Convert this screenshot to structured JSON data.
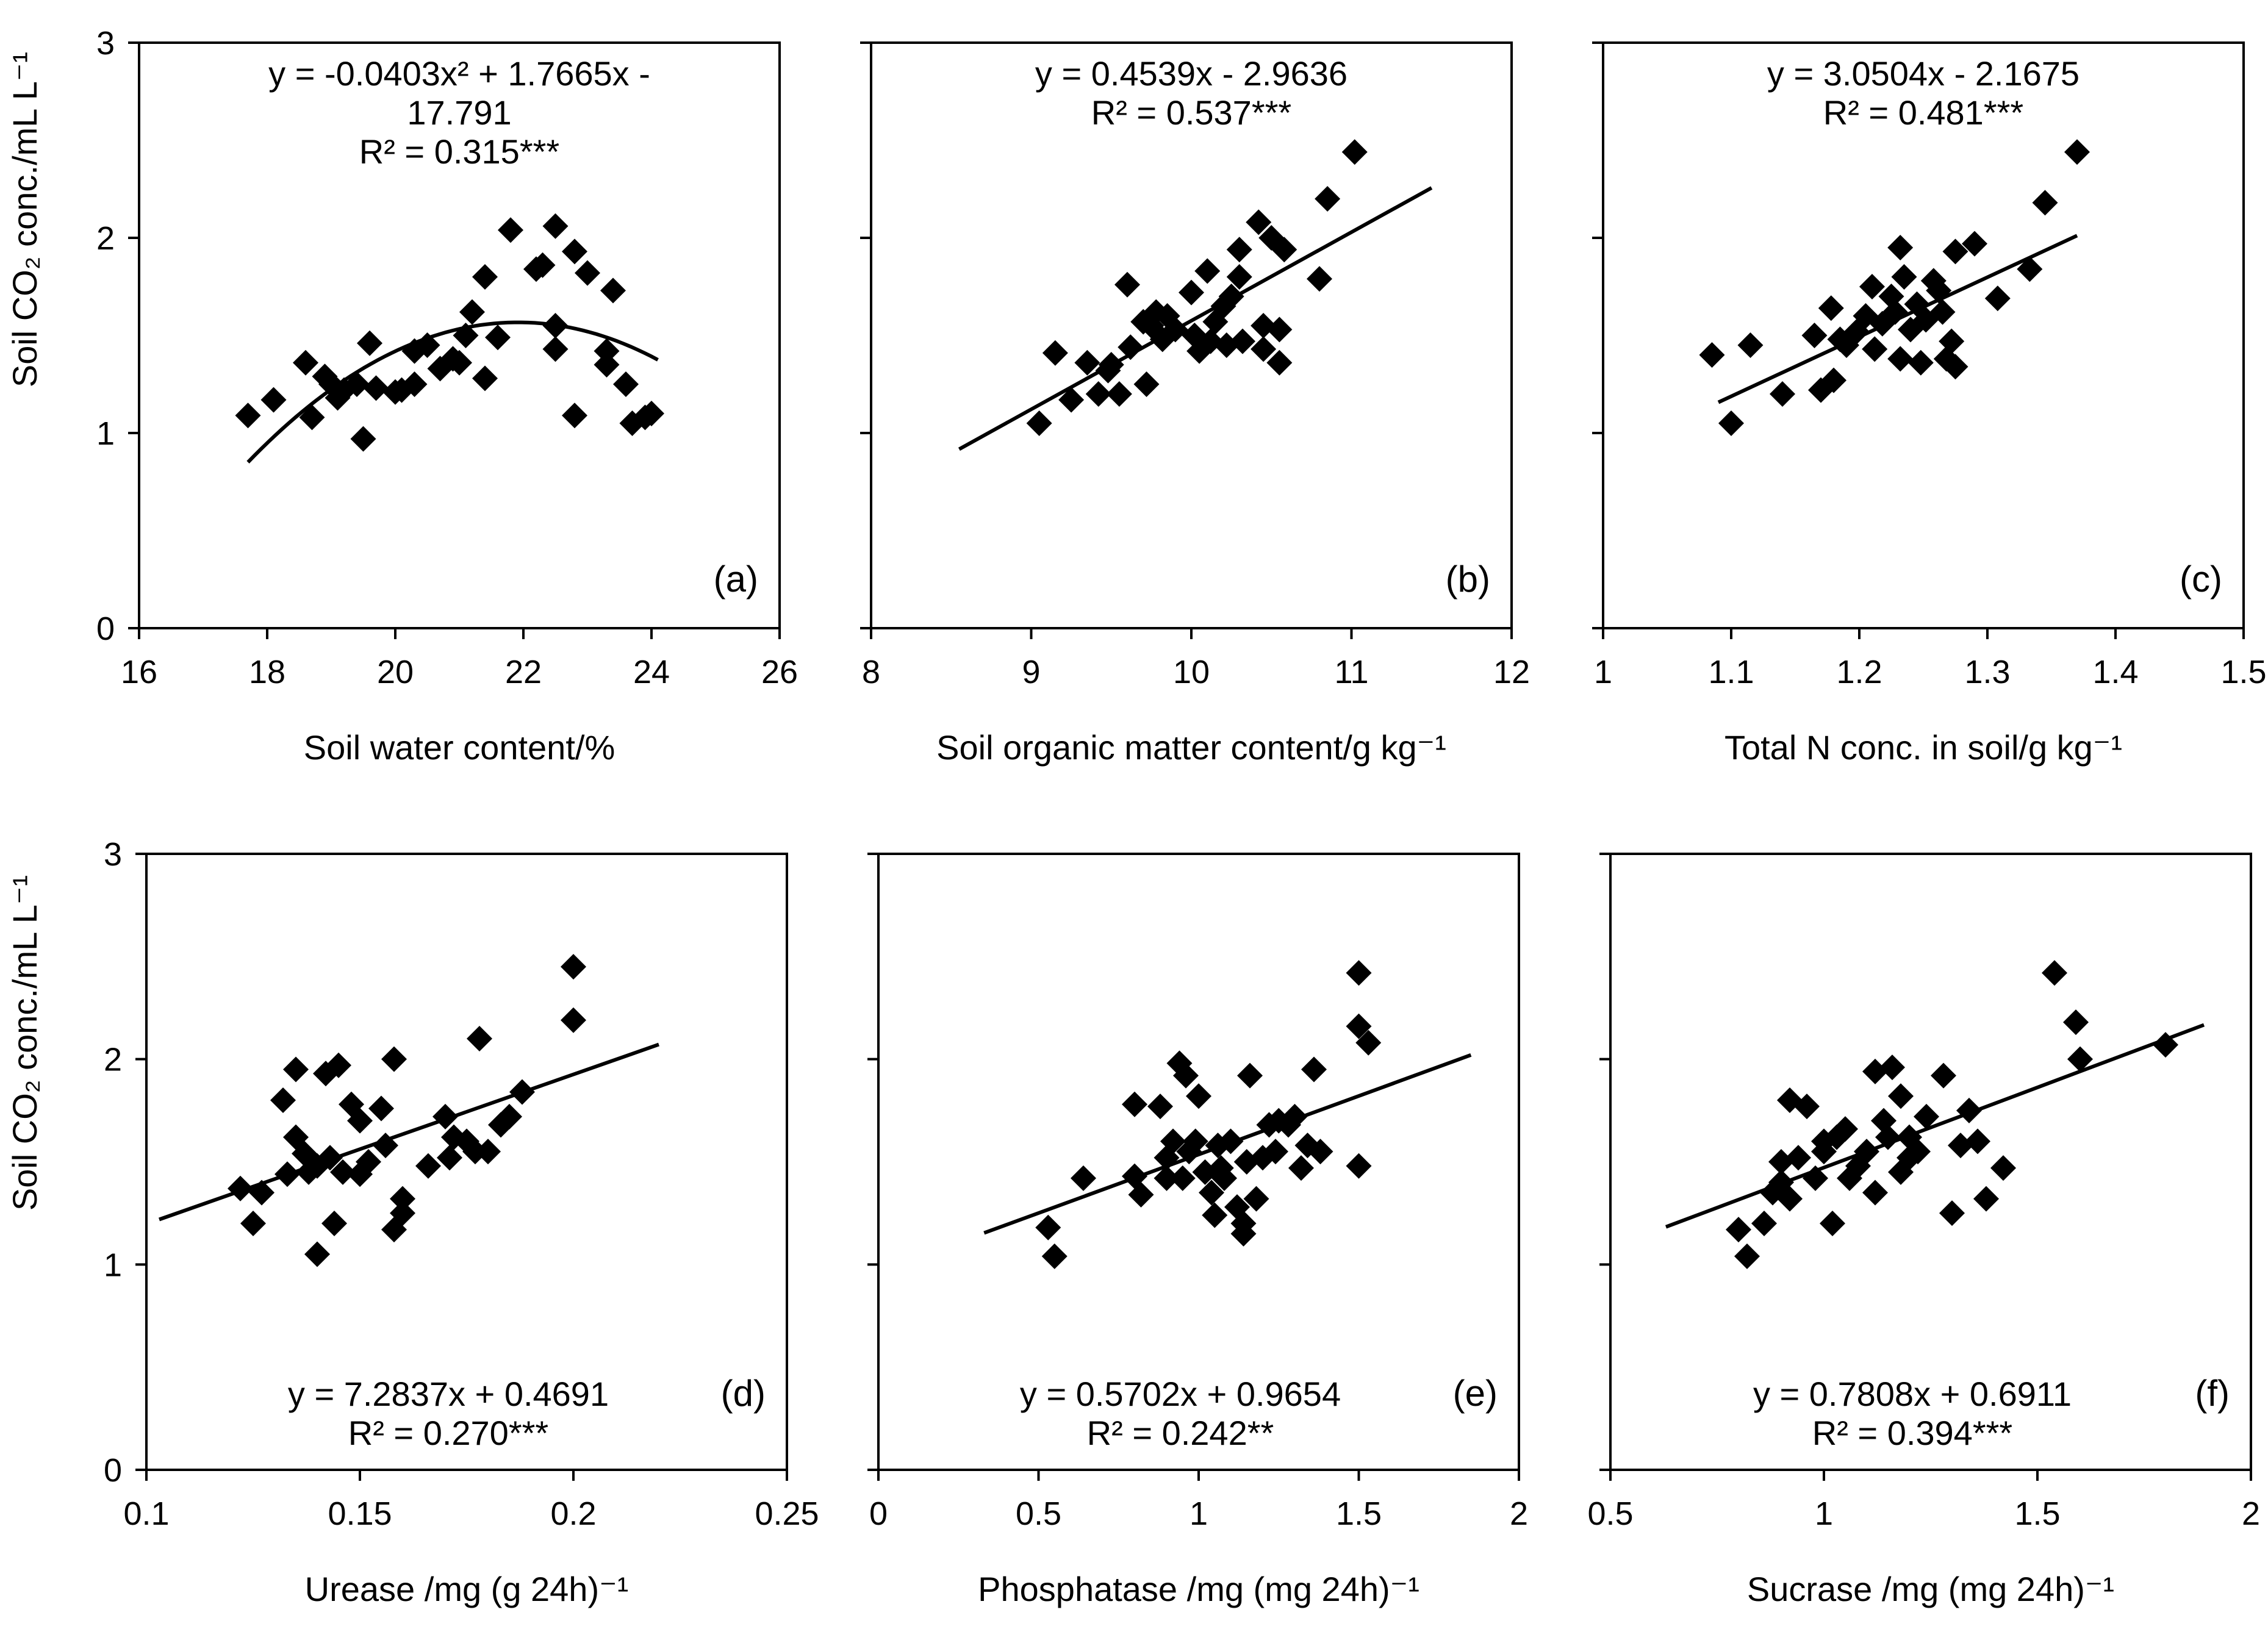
{
  "figure": {
    "y_axis_title": "Soil CO₂ conc./mL L⁻¹"
  },
  "chart_data": [
    {
      "type": "scatter",
      "panel_label": "(a)",
      "xlabel": "Soil water content/%",
      "ylabel": "Soil CO₂ conc./mL L⁻¹",
      "xlim": [
        16,
        26
      ],
      "ylim": [
        0,
        3
      ],
      "x_ticks": [
        16,
        18,
        20,
        22,
        24,
        26
      ],
      "y_ticks": [
        0,
        1,
        2,
        3
      ],
      "equation_lines": [
        "y = -0.0403x² + 1.7665x -",
        "17.791",
        "R² = 0.315***"
      ],
      "equation_position": "top-center",
      "fit": {
        "kind": "quadratic",
        "coefficients": [
          -0.0403,
          1.7665,
          -17.791
        ],
        "x_range": [
          17.7,
          24.1
        ]
      },
      "points": [
        [
          17.7,
          1.09
        ],
        [
          18.1,
          1.17
        ],
        [
          18.6,
          1.36
        ],
        [
          18.7,
          1.08
        ],
        [
          18.9,
          1.29
        ],
        [
          19.0,
          1.25
        ],
        [
          19.1,
          1.18
        ],
        [
          19.2,
          1.22
        ],
        [
          19.4,
          1.25
        ],
        [
          19.5,
          0.97
        ],
        [
          19.6,
          1.46
        ],
        [
          19.7,
          1.23
        ],
        [
          20.0,
          1.21
        ],
        [
          20.1,
          1.22
        ],
        [
          20.3,
          1.25
        ],
        [
          20.3,
          1.42
        ],
        [
          20.5,
          1.45
        ],
        [
          20.7,
          1.33
        ],
        [
          20.9,
          1.38
        ],
        [
          21.0,
          1.36
        ],
        [
          21.1,
          1.5
        ],
        [
          21.2,
          1.62
        ],
        [
          21.4,
          1.8
        ],
        [
          21.4,
          1.28
        ],
        [
          21.6,
          1.49
        ],
        [
          21.8,
          2.04
        ],
        [
          22.2,
          1.84
        ],
        [
          22.3,
          1.86
        ],
        [
          22.5,
          2.06
        ],
        [
          22.5,
          1.55
        ],
        [
          22.5,
          1.43
        ],
        [
          22.8,
          1.93
        ],
        [
          22.8,
          1.09
        ],
        [
          23.0,
          1.82
        ],
        [
          23.3,
          1.35
        ],
        [
          23.3,
          1.42
        ],
        [
          23.4,
          1.73
        ],
        [
          23.6,
          1.25
        ],
        [
          23.7,
          1.05
        ],
        [
          23.9,
          1.08
        ],
        [
          24.0,
          1.1
        ]
      ]
    },
    {
      "type": "scatter",
      "panel_label": "(b)",
      "xlabel": "Soil organic matter content/g kg⁻¹",
      "ylabel": "",
      "xlim": [
        8,
        12
      ],
      "ylim": [
        0,
        3
      ],
      "x_ticks": [
        8,
        9,
        10,
        11,
        12
      ],
      "y_ticks": [
        0,
        1,
        2,
        3
      ],
      "equation_lines": [
        "y = 0.4539x - 2.9636",
        "R² = 0.537***"
      ],
      "equation_position": "top-center",
      "fit": {
        "kind": "linear",
        "coefficients": [
          0.4539,
          -2.9636
        ],
        "x_range": [
          8.55,
          11.5
        ]
      },
      "points": [
        [
          9.05,
          1.05
        ],
        [
          9.15,
          1.41
        ],
        [
          9.25,
          1.17
        ],
        [
          9.35,
          1.36
        ],
        [
          9.42,
          1.2
        ],
        [
          9.48,
          1.32
        ],
        [
          9.5,
          1.35
        ],
        [
          9.55,
          1.2
        ],
        [
          9.6,
          1.76
        ],
        [
          9.62,
          1.44
        ],
        [
          9.7,
          1.57
        ],
        [
          9.72,
          1.25
        ],
        [
          9.75,
          1.55
        ],
        [
          9.78,
          1.62
        ],
        [
          9.82,
          1.48
        ],
        [
          9.85,
          1.6
        ],
        [
          9.9,
          1.53
        ],
        [
          10.0,
          1.72
        ],
        [
          10.02,
          1.5
        ],
        [
          10.05,
          1.42
        ],
        [
          10.1,
          1.83
        ],
        [
          10.12,
          1.47
        ],
        [
          10.15,
          1.57
        ],
        [
          10.2,
          1.65
        ],
        [
          10.22,
          1.45
        ],
        [
          10.25,
          1.7
        ],
        [
          10.3,
          1.94
        ],
        [
          10.3,
          1.8
        ],
        [
          10.32,
          1.47
        ],
        [
          10.42,
          2.08
        ],
        [
          10.45,
          1.55
        ],
        [
          10.45,
          1.43
        ],
        [
          10.5,
          2.0
        ],
        [
          10.55,
          1.36
        ],
        [
          10.55,
          1.53
        ],
        [
          10.58,
          1.94
        ],
        [
          10.8,
          1.79
        ],
        [
          10.85,
          2.2
        ],
        [
          11.02,
          2.44
        ]
      ]
    },
    {
      "type": "scatter",
      "panel_label": "(c)",
      "xlabel": "Total N conc. in soil/g kg⁻¹",
      "ylabel": "",
      "xlim": [
        1,
        1.5
      ],
      "ylim": [
        0,
        3
      ],
      "x_ticks": [
        1,
        1.1,
        1.2,
        1.3,
        1.4,
        1.5
      ],
      "y_ticks": [
        0,
        1,
        2,
        3
      ],
      "equation_lines": [
        "y = 3.0504x - 2.1675",
        "R² = 0.481***"
      ],
      "equation_position": "top-center",
      "fit": {
        "kind": "linear",
        "coefficients": [
          3.0504,
          -2.1675
        ],
        "x_range": [
          1.09,
          1.37
        ]
      },
      "points": [
        [
          1.085,
          1.4
        ],
        [
          1.1,
          1.05
        ],
        [
          1.115,
          1.45
        ],
        [
          1.14,
          1.2
        ],
        [
          1.165,
          1.5
        ],
        [
          1.17,
          1.22
        ],
        [
          1.178,
          1.64
        ],
        [
          1.18,
          1.27
        ],
        [
          1.185,
          1.48
        ],
        [
          1.19,
          1.45
        ],
        [
          1.198,
          1.52
        ],
        [
          1.205,
          1.6
        ],
        [
          1.21,
          1.75
        ],
        [
          1.212,
          1.43
        ],
        [
          1.218,
          1.56
        ],
        [
          1.225,
          1.7
        ],
        [
          1.228,
          1.62
        ],
        [
          1.232,
          1.95
        ],
        [
          1.232,
          1.38
        ],
        [
          1.235,
          1.8
        ],
        [
          1.24,
          1.53
        ],
        [
          1.245,
          1.66
        ],
        [
          1.248,
          1.36
        ],
        [
          1.252,
          1.58
        ],
        [
          1.258,
          1.78
        ],
        [
          1.262,
          1.73
        ],
        [
          1.265,
          1.62
        ],
        [
          1.268,
          1.38
        ],
        [
          1.272,
          1.47
        ],
        [
          1.275,
          1.34
        ],
        [
          1.275,
          1.93
        ],
        [
          1.29,
          1.97
        ],
        [
          1.308,
          1.69
        ],
        [
          1.333,
          1.84
        ],
        [
          1.345,
          2.18
        ],
        [
          1.37,
          2.44
        ]
      ]
    },
    {
      "type": "scatter",
      "panel_label": "(d)",
      "xlabel": "Urease /mg (g 24h)⁻¹",
      "ylabel": "Soil CO₂ conc./mL L⁻¹",
      "xlim": [
        0.1,
        0.25
      ],
      "ylim": [
        0,
        3
      ],
      "x_ticks": [
        0.1,
        0.15,
        0.2,
        0.25
      ],
      "y_ticks": [
        0,
        1,
        2,
        3
      ],
      "equation_lines": [
        "y = 7.2837x + 0.4691",
        "R² = 0.270***"
      ],
      "equation_position": "bottom-center",
      "fit": {
        "kind": "linear",
        "coefficients": [
          7.2837,
          0.4691
        ],
        "x_range": [
          0.103,
          0.22
        ]
      },
      "points": [
        [
          0.122,
          1.37
        ],
        [
          0.125,
          1.2
        ],
        [
          0.127,
          1.35
        ],
        [
          0.132,
          1.8
        ],
        [
          0.133,
          1.44
        ],
        [
          0.135,
          1.62
        ],
        [
          0.135,
          1.95
        ],
        [
          0.137,
          1.54
        ],
        [
          0.138,
          1.45
        ],
        [
          0.14,
          1.05
        ],
        [
          0.14,
          1.48
        ],
        [
          0.142,
          1.93
        ],
        [
          0.143,
          1.52
        ],
        [
          0.144,
          1.2
        ],
        [
          0.145,
          1.97
        ],
        [
          0.146,
          1.45
        ],
        [
          0.148,
          1.78
        ],
        [
          0.15,
          1.7
        ],
        [
          0.15,
          1.44
        ],
        [
          0.152,
          1.5
        ],
        [
          0.155,
          1.76
        ],
        [
          0.156,
          1.58
        ],
        [
          0.158,
          2.0
        ],
        [
          0.158,
          1.17
        ],
        [
          0.16,
          1.32
        ],
        [
          0.16,
          1.25
        ],
        [
          0.166,
          1.48
        ],
        [
          0.17,
          1.72
        ],
        [
          0.171,
          1.52
        ],
        [
          0.172,
          1.62
        ],
        [
          0.175,
          1.6
        ],
        [
          0.177,
          1.55
        ],
        [
          0.178,
          2.1
        ],
        [
          0.18,
          1.55
        ],
        [
          0.183,
          1.68
        ],
        [
          0.185,
          1.72
        ],
        [
          0.188,
          1.84
        ],
        [
          0.2,
          2.45
        ],
        [
          0.2,
          2.19
        ]
      ]
    },
    {
      "type": "scatter",
      "panel_label": "(e)",
      "xlabel": "Phosphatase /mg (mg 24h)⁻¹",
      "ylabel": "",
      "xlim": [
        0,
        2
      ],
      "ylim": [
        0,
        3
      ],
      "x_ticks": [
        0,
        0.5,
        1,
        1.5,
        2
      ],
      "y_ticks": [
        0,
        1,
        2,
        3
      ],
      "equation_lines": [
        "y = 0.5702x + 0.9654",
        "R² = 0.242**"
      ],
      "equation_position": "bottom-center",
      "fit": {
        "kind": "linear",
        "coefficients": [
          0.5702,
          0.9654
        ],
        "x_range": [
          0.33,
          1.85
        ]
      },
      "points": [
        [
          0.53,
          1.18
        ],
        [
          0.55,
          1.04
        ],
        [
          0.64,
          1.42
        ],
        [
          0.8,
          1.78
        ],
        [
          0.8,
          1.43
        ],
        [
          0.82,
          1.34
        ],
        [
          0.88,
          1.77
        ],
        [
          0.9,
          1.52
        ],
        [
          0.9,
          1.42
        ],
        [
          0.92,
          1.6
        ],
        [
          0.94,
          1.98
        ],
        [
          0.95,
          1.42
        ],
        [
          0.96,
          1.92
        ],
        [
          0.97,
          1.55
        ],
        [
          0.99,
          1.6
        ],
        [
          1.0,
          1.82
        ],
        [
          1.02,
          1.45
        ],
        [
          1.04,
          1.35
        ],
        [
          1.05,
          1.24
        ],
        [
          1.06,
          1.58
        ],
        [
          1.07,
          1.47
        ],
        [
          1.08,
          1.42
        ],
        [
          1.1,
          1.6
        ],
        [
          1.12,
          1.28
        ],
        [
          1.14,
          1.2
        ],
        [
          1.14,
          1.15
        ],
        [
          1.15,
          1.5
        ],
        [
          1.16,
          1.92
        ],
        [
          1.18,
          1.32
        ],
        [
          1.2,
          1.52
        ],
        [
          1.22,
          1.68
        ],
        [
          1.24,
          1.55
        ],
        [
          1.25,
          1.7
        ],
        [
          1.28,
          1.68
        ],
        [
          1.3,
          1.72
        ],
        [
          1.32,
          1.47
        ],
        [
          1.34,
          1.58
        ],
        [
          1.36,
          1.95
        ],
        [
          1.38,
          1.55
        ],
        [
          1.5,
          2.42
        ],
        [
          1.5,
          2.16
        ],
        [
          1.5,
          1.48
        ],
        [
          1.53,
          2.08
        ]
      ]
    },
    {
      "type": "scatter",
      "panel_label": "(f)",
      "xlabel": "Sucrase /mg (mg 24h)⁻¹",
      "ylabel": "",
      "xlim": [
        0.5,
        2
      ],
      "ylim": [
        0,
        3
      ],
      "x_ticks": [
        0.5,
        1,
        1.5,
        2
      ],
      "y_ticks": [
        0,
        1,
        2,
        3
      ],
      "equation_lines": [
        "y = 0.7808x + 0.6911",
        "R² = 0.394***"
      ],
      "equation_position": "bottom-center",
      "fit": {
        "kind": "linear",
        "coefficients": [
          0.7808,
          0.6911
        ],
        "x_range": [
          0.63,
          1.89
        ]
      },
      "points": [
        [
          0.8,
          1.17
        ],
        [
          0.82,
          1.04
        ],
        [
          0.86,
          1.2
        ],
        [
          0.88,
          1.35
        ],
        [
          0.9,
          1.5
        ],
        [
          0.9,
          1.4
        ],
        [
          0.92,
          1.8
        ],
        [
          0.92,
          1.32
        ],
        [
          0.94,
          1.52
        ],
        [
          0.96,
          1.77
        ],
        [
          0.98,
          1.42
        ],
        [
          1.0,
          1.55
        ],
        [
          1.0,
          1.6
        ],
        [
          1.02,
          1.2
        ],
        [
          1.03,
          1.62
        ],
        [
          1.05,
          1.66
        ],
        [
          1.06,
          1.42
        ],
        [
          1.08,
          1.48
        ],
        [
          1.1,
          1.55
        ],
        [
          1.12,
          1.94
        ],
        [
          1.12,
          1.35
        ],
        [
          1.14,
          1.7
        ],
        [
          1.15,
          1.62
        ],
        [
          1.16,
          1.96
        ],
        [
          1.18,
          1.45
        ],
        [
          1.18,
          1.82
        ],
        [
          1.2,
          1.52
        ],
        [
          1.2,
          1.62
        ],
        [
          1.22,
          1.55
        ],
        [
          1.24,
          1.72
        ],
        [
          1.28,
          1.92
        ],
        [
          1.3,
          1.25
        ],
        [
          1.32,
          1.58
        ],
        [
          1.34,
          1.75
        ],
        [
          1.36,
          1.6
        ],
        [
          1.38,
          1.32
        ],
        [
          1.42,
          1.47
        ],
        [
          1.54,
          2.42
        ],
        [
          1.59,
          2.18
        ],
        [
          1.6,
          2.0
        ],
        [
          1.8,
          2.07
        ]
      ]
    }
  ]
}
